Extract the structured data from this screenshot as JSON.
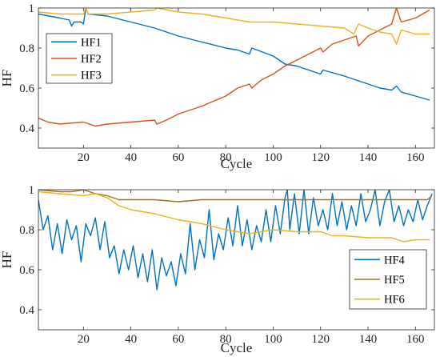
{
  "chart_data": [
    {
      "type": "line",
      "xlabel": "Cycle",
      "ylabel": "HF",
      "xlim": [
        1,
        168
      ],
      "ylim": [
        0.3,
        1.0
      ],
      "x_ticks": [
        20,
        40,
        60,
        80,
        100,
        120,
        140,
        160
      ],
      "y_ticks": [
        0.4,
        0.6,
        0.8,
        1
      ],
      "y_tick_labels": [
        "0.4",
        "0.6",
        "0.8",
        "1"
      ],
      "legend_position": "top-left",
      "series": [
        {
          "name": "HF1",
          "color": "#0072BD",
          "points": [
            [
              1,
              0.97
            ],
            [
              10,
              0.95
            ],
            [
              14,
              0.94
            ],
            [
              15,
              0.91
            ],
            [
              16,
              0.93
            ],
            [
              19,
              0.93
            ],
            [
              20,
              0.92
            ],
            [
              21,
              1.0
            ],
            [
              22,
              0.97
            ],
            [
              30,
              0.96
            ],
            [
              40,
              0.93
            ],
            [
              50,
              0.9
            ],
            [
              60,
              0.86
            ],
            [
              70,
              0.83
            ],
            [
              80,
              0.8
            ],
            [
              85,
              0.79
            ],
            [
              90,
              0.77
            ],
            [
              91,
              0.8
            ],
            [
              100,
              0.76
            ],
            [
              105,
              0.72
            ],
            [
              110,
              0.71
            ],
            [
              115,
              0.69
            ],
            [
              120,
              0.67
            ],
            [
              121,
              0.69
            ],
            [
              130,
              0.66
            ],
            [
              135,
              0.64
            ],
            [
              140,
              0.62
            ],
            [
              145,
              0.6
            ],
            [
              150,
              0.59
            ],
            [
              152,
              0.61
            ],
            [
              154,
              0.58
            ],
            [
              160,
              0.56
            ],
            [
              166,
              0.54
            ]
          ]
        },
        {
          "name": "HF2",
          "color": "#D95319",
          "points": [
            [
              1,
              0.45
            ],
            [
              5,
              0.43
            ],
            [
              10,
              0.42
            ],
            [
              20,
              0.43
            ],
            [
              25,
              0.41
            ],
            [
              30,
              0.42
            ],
            [
              40,
              0.43
            ],
            [
              50,
              0.44
            ],
            [
              51,
              0.42
            ],
            [
              55,
              0.44
            ],
            [
              60,
              0.47
            ],
            [
              70,
              0.51
            ],
            [
              80,
              0.56
            ],
            [
              85,
              0.6
            ],
            [
              90,
              0.62
            ],
            [
              91,
              0.6
            ],
            [
              95,
              0.64
            ],
            [
              100,
              0.67
            ],
            [
              105,
              0.71
            ],
            [
              110,
              0.74
            ],
            [
              115,
              0.77
            ],
            [
              120,
              0.8
            ],
            [
              121,
              0.78
            ],
            [
              125,
              0.82
            ],
            [
              130,
              0.84
            ],
            [
              135,
              0.86
            ],
            [
              136,
              0.81
            ],
            [
              140,
              0.86
            ],
            [
              145,
              0.89
            ],
            [
              150,
              0.92
            ],
            [
              152,
              1.0
            ],
            [
              154,
              0.93
            ],
            [
              160,
              0.95
            ],
            [
              166,
              0.99
            ]
          ]
        },
        {
          "name": "HF3",
          "color": "#EDB120",
          "points": [
            [
              1,
              0.98
            ],
            [
              10,
              0.97
            ],
            [
              20,
              0.97
            ],
            [
              21,
              1.0
            ],
            [
              22,
              0.97
            ],
            [
              30,
              0.97
            ],
            [
              40,
              0.98
            ],
            [
              50,
              0.99
            ],
            [
              51,
              1.0
            ],
            [
              60,
              0.98
            ],
            [
              70,
              0.97
            ],
            [
              80,
              0.95
            ],
            [
              90,
              0.93
            ],
            [
              100,
              0.93
            ],
            [
              110,
              0.92
            ],
            [
              120,
              0.91
            ],
            [
              130,
              0.9
            ],
            [
              134,
              0.87
            ],
            [
              136,
              0.92
            ],
            [
              140,
              0.9
            ],
            [
              145,
              0.88
            ],
            [
              150,
              0.87
            ],
            [
              152,
              0.82
            ],
            [
              154,
              0.89
            ],
            [
              160,
              0.87
            ],
            [
              166,
              0.87
            ]
          ]
        }
      ]
    },
    {
      "type": "line",
      "xlabel": "Cycle",
      "ylabel": "HF",
      "xlim": [
        1,
        168
      ],
      "ylim": [
        0.3,
        1.0
      ],
      "x_ticks": [
        20,
        40,
        60,
        80,
        100,
        120,
        140,
        160
      ],
      "y_ticks": [
        0.4,
        0.6,
        0.8,
        1
      ],
      "y_tick_labels": [
        "0.4",
        "0.6",
        "0.8",
        "1"
      ],
      "legend_position": "bottom-right",
      "series": [
        {
          "name": "HF4",
          "color": "#0072BD",
          "points": [
            [
              1,
              0.95
            ],
            [
              3,
              0.8
            ],
            [
              5,
              0.87
            ],
            [
              7,
              0.7
            ],
            [
              9,
              0.83
            ],
            [
              11,
              0.68
            ],
            [
              13,
              0.85
            ],
            [
              15,
              0.75
            ],
            [
              17,
              0.82
            ],
            [
              19,
              0.64
            ],
            [
              21,
              0.83
            ],
            [
              23,
              0.77
            ],
            [
              25,
              0.86
            ],
            [
              27,
              0.7
            ],
            [
              29,
              0.84
            ],
            [
              31,
              0.66
            ],
            [
              33,
              0.72
            ],
            [
              35,
              0.58
            ],
            [
              37,
              0.7
            ],
            [
              39,
              0.6
            ],
            [
              41,
              0.72
            ],
            [
              43,
              0.56
            ],
            [
              45,
              0.68
            ],
            [
              47,
              0.54
            ],
            [
              49,
              0.7
            ],
            [
              51,
              0.5
            ],
            [
              53,
              0.66
            ],
            [
              55,
              0.57
            ],
            [
              57,
              0.64
            ],
            [
              59,
              0.52
            ],
            [
              61,
              0.68
            ],
            [
              63,
              0.58
            ],
            [
              65,
              0.83
            ],
            [
              67,
              0.6
            ],
            [
              69,
              0.75
            ],
            [
              71,
              0.66
            ],
            [
              73,
              0.9
            ],
            [
              75,
              0.65
            ],
            [
              77,
              0.78
            ],
            [
              79,
              0.7
            ],
            [
              81,
              0.86
            ],
            [
              83,
              0.72
            ],
            [
              85,
              0.92
            ],
            [
              87,
              0.72
            ],
            [
              89,
              0.85
            ],
            [
              91,
              0.7
            ],
            [
              93,
              0.82
            ],
            [
              95,
              0.74
            ],
            [
              97,
              0.9
            ],
            [
              99,
              0.74
            ],
            [
              101,
              0.92
            ],
            [
              103,
              0.78
            ],
            [
              105,
              0.96
            ],
            [
              106,
              1.0
            ],
            [
              107,
              0.8
            ],
            [
              109,
              0.98
            ],
            [
              111,
              0.78
            ],
            [
              113,
              1.0
            ],
            [
              115,
              0.78
            ],
            [
              117,
              0.96
            ],
            [
              119,
              0.82
            ],
            [
              121,
              0.9
            ],
            [
              123,
              0.8
            ],
            [
              125,
              0.98
            ],
            [
              127,
              0.82
            ],
            [
              129,
              0.94
            ],
            [
              131,
              0.8
            ],
            [
              133,
              0.92
            ],
            [
              135,
              0.82
            ],
            [
              137,
              0.98
            ],
            [
              139,
              0.84
            ],
            [
              141,
              0.9
            ],
            [
              143,
              1.0
            ],
            [
              145,
              0.82
            ],
            [
              147,
              0.94
            ],
            [
              149,
              1.0
            ],
            [
              151,
              0.84
            ],
            [
              153,
              0.92
            ],
            [
              155,
              0.82
            ],
            [
              157,
              0.9
            ],
            [
              159,
              0.84
            ],
            [
              161,
              0.95
            ],
            [
              163,
              0.85
            ],
            [
              165,
              0.92
            ],
            [
              167,
              0.98
            ]
          ]
        },
        {
          "name": "HF5",
          "color": "#A2711F",
          "points": [
            [
              1,
              1.0
            ],
            [
              10,
              0.99
            ],
            [
              15,
              0.99
            ],
            [
              20,
              1.0
            ],
            [
              25,
              0.98
            ],
            [
              30,
              0.97
            ],
            [
              35,
              0.95
            ],
            [
              40,
              0.95
            ],
            [
              50,
              0.95
            ],
            [
              60,
              0.94
            ],
            [
              70,
              0.95
            ],
            [
              80,
              0.95
            ],
            [
              90,
              0.95
            ],
            [
              100,
              0.95
            ],
            [
              110,
              0.95
            ],
            [
              120,
              0.95
            ],
            [
              130,
              0.95
            ],
            [
              140,
              0.95
            ],
            [
              150,
              0.95
            ],
            [
              160,
              0.95
            ],
            [
              165,
              0.95
            ],
            [
              167,
              0.97
            ]
          ]
        },
        {
          "name": "HF6",
          "color": "#EDB120",
          "points": [
            [
              1,
              0.99
            ],
            [
              10,
              0.98
            ],
            [
              20,
              0.97
            ],
            [
              25,
              0.98
            ],
            [
              30,
              0.96
            ],
            [
              35,
              0.92
            ],
            [
              40,
              0.9
            ],
            [
              50,
              0.88
            ],
            [
              60,
              0.85
            ],
            [
              70,
              0.83
            ],
            [
              80,
              0.8
            ],
            [
              85,
              0.79
            ],
            [
              90,
              0.78
            ],
            [
              100,
              0.8
            ],
            [
              110,
              0.79
            ],
            [
              120,
              0.79
            ],
            [
              125,
              0.77
            ],
            [
              130,
              0.77
            ],
            [
              140,
              0.76
            ],
            [
              150,
              0.76
            ],
            [
              155,
              0.74
            ],
            [
              160,
              0.75
            ],
            [
              166,
              0.75
            ]
          ]
        }
      ]
    }
  ]
}
